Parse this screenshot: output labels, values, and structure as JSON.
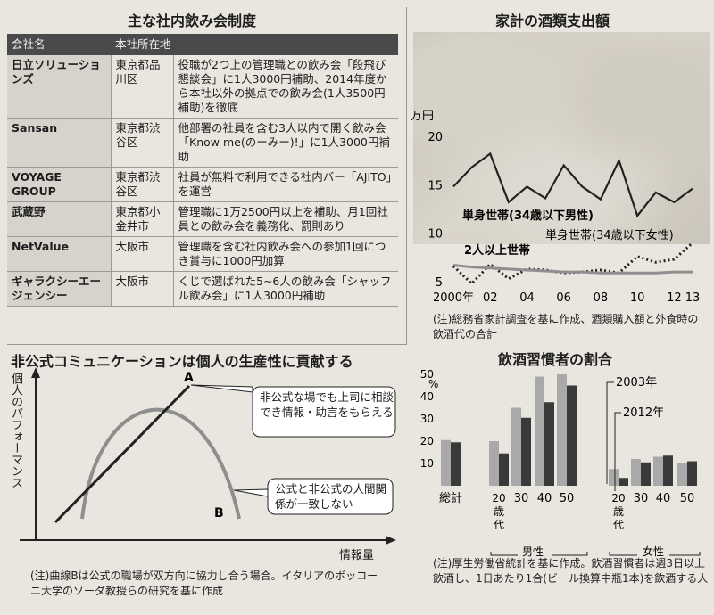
{
  "table_panel": {
    "title": "主な社内飲み会制度",
    "headers": [
      "会社名",
      "本社所在地"
    ],
    "rows": [
      {
        "company": "日立ソリューションズ",
        "location": "東京都品川区",
        "desc": "役職が2つ上の管理職との飲み会「段飛び懇談会」に1人3000円補助、2014年度から本社以外の拠点での飲み会(1人3500円補助)を徹底"
      },
      {
        "company": "Sansan",
        "location": "東京都渋谷区",
        "desc": "他部署の社員を含む3人以内で開く飲み会「Know me(のーみー)!」に1人3000円補助"
      },
      {
        "company": "VOYAGE GROUP",
        "location": "東京都渋谷区",
        "desc": "社員が無料で利用できる社内バー「AJITO」を運営"
      },
      {
        "company": "武蔵野",
        "location": "東京都小金井市",
        "desc": "管理職に1万2500円以上を補助、月1回社員との飲み会を義務化、罰則あり"
      },
      {
        "company": "NetValue",
        "location": "大阪市",
        "desc": "管理職を含む社内飲み会への参加1回につき賞与に1000円加算"
      },
      {
        "company": "ギャラクシーエージェンシー",
        "location": "大阪市",
        "desc": "くじで選ばれた5~6人の飲み会「シャッフル飲み会」に1人3000円補助"
      }
    ]
  },
  "expense_panel": {
    "title": "家計の酒類支出額",
    "note": "(注)総務省家計調査を基に作成、酒類購入額と外食時の飲酒代の合計"
  },
  "productivity_panel": {
    "title": "非公式コミュニケーションは個人の生産性に貢献する",
    "note": "(注)曲線Bは公式の職場が双方向に協力し合う場合。イタリアのボッコーニ大学のソーダ教授らの研究を基に作成"
  },
  "drinking_panel": {
    "title": "飲酒習慣者の割合",
    "note": "(注)厚生労働省統計を基に作成。飲酒習慣者は週3日以上飲酒し、1日あたり1合(ビール換算中瓶1本)を飲酒する人"
  },
  "chart_data": [
    {
      "type": "line",
      "title": "家計の酒類支出額",
      "ylabel": "万円",
      "x": [
        2000,
        2001,
        2002,
        2003,
        2004,
        2005,
        2006,
        2007,
        2008,
        2009,
        2010,
        2011,
        2012,
        2013
      ],
      "xtick_labels": [
        "2000年",
        "02",
        "04",
        "06",
        "08",
        "10",
        "12",
        "13"
      ],
      "xtick_values": [
        2000,
        2002,
        2004,
        2006,
        2008,
        2010,
        2012,
        2013
      ],
      "yticks": [
        5,
        10,
        15,
        20
      ],
      "ylim": [
        5,
        21
      ],
      "series": [
        {
          "name": "単身世帯(34歳以下男性)",
          "values": [
            14.8,
            16.8,
            18.2,
            13.2,
            14.8,
            13.6,
            17.0,
            14.8,
            13.5,
            17.5,
            11.8,
            14.2,
            13.2,
            14.6
          ]
        },
        {
          "name": "単身世帯(34歳以下女性)",
          "values": [
            6.6,
            4.8,
            6.8,
            5.3,
            6.3,
            6.2,
            5.9,
            6.0,
            6.2,
            5.9,
            7.6,
            7.0,
            7.3,
            9.0
          ]
        },
        {
          "name": "2人以上世帯",
          "values": [
            6.7,
            6.5,
            6.4,
            6.3,
            6.2,
            6.1,
            6.0,
            6.0,
            5.9,
            5.9,
            5.9,
            5.9,
            6.0,
            6.0
          ]
        }
      ]
    },
    {
      "type": "line",
      "title": "非公式コミュニケーションは個人の生産性に貢献する",
      "xlabel": "情報量",
      "ylabel": "個人のパフォーマンス",
      "series": [
        {
          "name": "A",
          "label": "非公式な場でも上司に相談でき情報・助言をもらえる"
        },
        {
          "name": "B",
          "label": "公式と非公式の人間関係が一致しない"
        }
      ]
    },
    {
      "type": "bar",
      "title": "飲酒習慣者の割合",
      "ylabel": "%",
      "yticks": [
        0,
        10,
        20,
        30,
        40,
        50
      ],
      "ylim": [
        0,
        50
      ],
      "categories": [
        "総計",
        "20歳代",
        "30",
        "40",
        "50",
        "20歳代",
        "30",
        "40",
        "50"
      ],
      "groups": [
        {
          "label": "男性",
          "categories": [
            "20歳代",
            "30",
            "40",
            "50"
          ]
        },
        {
          "label": "女性",
          "categories": [
            "20歳代",
            "30",
            "40",
            "50"
          ]
        }
      ],
      "series": [
        {
          "name": "2003年",
          "values": [
            20.5,
            20,
            35,
            49,
            50,
            7.5,
            12,
            13,
            10
          ],
          "color": "#a9a9a9"
        },
        {
          "name": "2012年",
          "values": [
            19.5,
            14.5,
            30.5,
            37.5,
            45,
            3.5,
            10.5,
            13.5,
            11
          ],
          "color": "#3a3a3a"
        }
      ]
    }
  ]
}
